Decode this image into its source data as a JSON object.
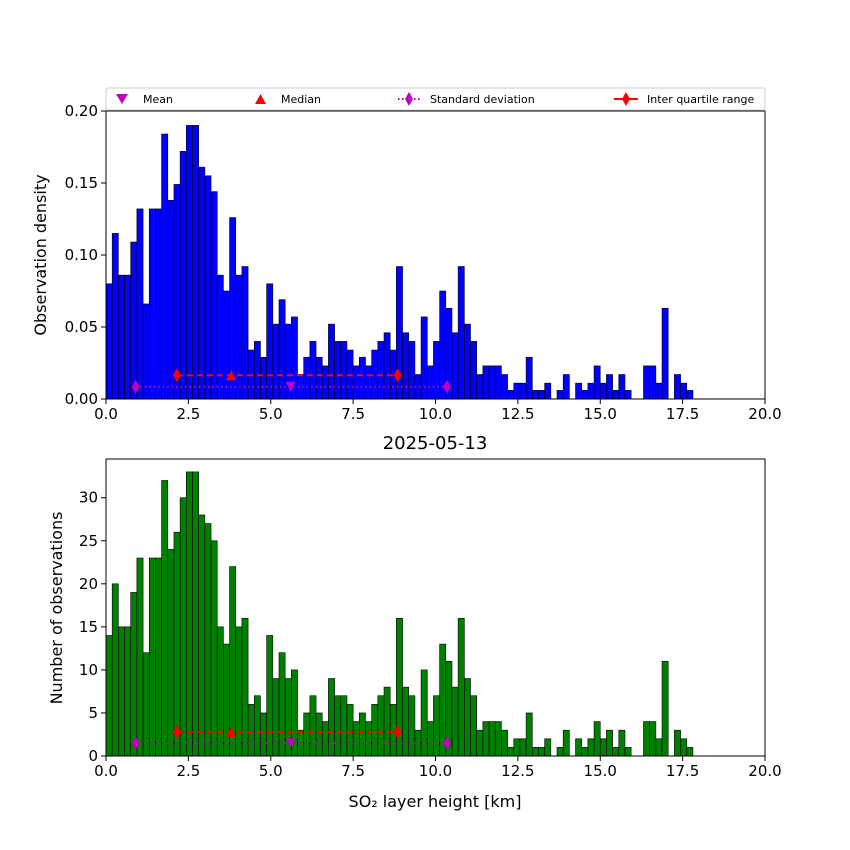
{
  "figure": {
    "title": "2025-05-13"
  },
  "legend": {
    "mean_label": "Mean",
    "median_label": "Median",
    "std_label": "Standard deviation",
    "iqr_label": "Inter quartile range"
  },
  "colors": {
    "density_bars": "#0000ff",
    "count_bars": "#008000",
    "mean": "#bf00bf",
    "std": "#bf00bf",
    "median": "#ff0000",
    "iqr": "#ff0000"
  },
  "statistics": {
    "mean": 5.6,
    "median": 3.8,
    "std_range": [
      0.9,
      10.35
    ],
    "iqr_range": [
      2.15,
      8.85
    ]
  },
  "chart_data": [
    {
      "type": "bar",
      "name": "density",
      "xlabel": "",
      "ylabel": "Observation density",
      "xlim": [
        0,
        20
      ],
      "ylim": [
        0,
        0.2
      ],
      "xticks": [
        "0.0",
        "2.5",
        "5.0",
        "7.5",
        "10.0",
        "12.5",
        "15.0",
        "17.5",
        "20.0"
      ],
      "yticks": [
        "0.00",
        "0.05",
        "0.10",
        "0.15",
        "0.20"
      ],
      "bin_start": 0,
      "bin_width": 0.1875,
      "values": [
        0.08,
        0.115,
        0.086,
        0.086,
        0.109,
        0.132,
        0.066,
        0.132,
        0.132,
        0.184,
        0.138,
        0.149,
        0.172,
        0.19,
        0.19,
        0.161,
        0.155,
        0.144,
        0.086,
        0.075,
        0.126,
        0.086,
        0.092,
        0.034,
        0.04,
        0.029,
        0.08,
        0.052,
        0.069,
        0.052,
        0.057,
        0.017,
        0.029,
        0.04,
        0.029,
        0.023,
        0.052,
        0.04,
        0.04,
        0.034,
        0.023,
        0.029,
        0.023,
        0.034,
        0.04,
        0.046,
        0.034,
        0.092,
        0.046,
        0.04,
        0.017,
        0.057,
        0.023,
        0.04,
        0.075,
        0.063,
        0.046,
        0.092,
        0.052,
        0.04,
        0.017,
        0.023,
        0.023,
        0.023,
        0.017,
        0.006,
        0.011,
        0.011,
        0.029,
        0.006,
        0.006,
        0.011,
        0,
        0.006,
        0.017,
        0,
        0.011,
        0.006,
        0.011,
        0.023,
        0.011,
        0.017,
        0.006,
        0.017,
        0.006,
        0,
        0,
        0.023,
        0.023,
        0.011,
        0.063,
        0,
        0.017,
        0.011,
        0.006,
        0,
        0,
        0,
        0,
        0,
        0,
        0,
        0,
        0,
        0,
        0,
        0
      ]
    },
    {
      "type": "bar",
      "name": "count",
      "xlabel": "SO₂ layer height [km]",
      "ylabel": "Number of observations",
      "xlim": [
        0,
        20
      ],
      "ylim": [
        0,
        34.5
      ],
      "xticks": [
        "0.0",
        "2.5",
        "5.0",
        "7.5",
        "10.0",
        "12.5",
        "15.0",
        "17.5",
        "20.0"
      ],
      "yticks": [
        "0",
        "5",
        "10",
        "15",
        "20",
        "25",
        "30"
      ],
      "bin_start": 0,
      "bin_width": 0.1875,
      "values": [
        14,
        20,
        15,
        15,
        19,
        23,
        12,
        23,
        23,
        32,
        24,
        26,
        30,
        33,
        33,
        28,
        27,
        25,
        15,
        13,
        22,
        15,
        16,
        6,
        7,
        5,
        14,
        9,
        12,
        9,
        10,
        3,
        5,
        7,
        5,
        4,
        9,
        7,
        7,
        6,
        4,
        5,
        4,
        6,
        7,
        8,
        6,
        16,
        8,
        7,
        3,
        10,
        4,
        7,
        13,
        11,
        8,
        16,
        9,
        7,
        3,
        4,
        4,
        4,
        3,
        1,
        2,
        2,
        5,
        1,
        1,
        2,
        0,
        1,
        3,
        0,
        2,
        1,
        2,
        4,
        2,
        3,
        1,
        3,
        1,
        0,
        0,
        4,
        4,
        2,
        11,
        0,
        3,
        2,
        1,
        0,
        0,
        0,
        0,
        0,
        0,
        0,
        0,
        0,
        0,
        0,
        0
      ]
    }
  ]
}
